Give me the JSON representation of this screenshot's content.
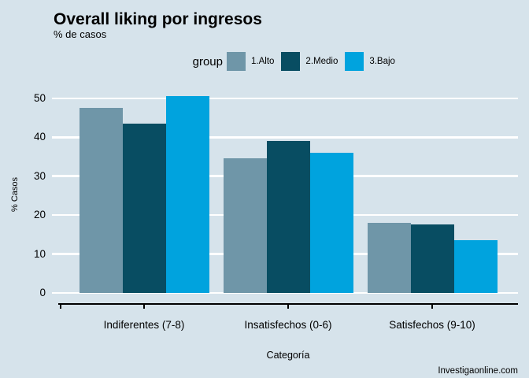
{
  "header": {
    "title": "Overall liking por ingresos",
    "subtitle": "% de casos"
  },
  "legend": {
    "label": "group",
    "entries": [
      {
        "name": "1.Alto",
        "color": "#6f96a8"
      },
      {
        "name": "2.Medio",
        "color": "#084d62"
      },
      {
        "name": "3.Bajo",
        "color": "#00a3de"
      }
    ]
  },
  "footer": {
    "caption": "Investigaonline.com"
  },
  "colors": {
    "background": "#d6e3eb",
    "grid": "#ffffff",
    "axis": "#000000",
    "text": "#000000"
  },
  "chart_data": {
    "type": "bar",
    "title": "Overall liking por ingresos",
    "subtitle": "% de casos",
    "categories": [
      "Indiferentes (7-8)",
      "Insatisfechos (0-6)",
      "Satisfechos (9-10)"
    ],
    "series": [
      {
        "name": "1.Alto",
        "color": "#6f96a8",
        "values": [
          47.5,
          34.5,
          18.0
        ]
      },
      {
        "name": "2.Medio",
        "color": "#084d62",
        "values": [
          43.5,
          39.0,
          17.5
        ]
      },
      {
        "name": "3.Bajo",
        "color": "#00a3de",
        "values": [
          50.5,
          36.0,
          13.5
        ]
      }
    ],
    "xlabel": "Categoría",
    "ylabel": "% Casos",
    "yticks": [
      0,
      10,
      20,
      30,
      40,
      50
    ],
    "ylim": [
      0,
      53
    ],
    "grid": "horizontal-white-gridlines",
    "legend_position": "top-center",
    "caption": "Investigaonline.com"
  }
}
